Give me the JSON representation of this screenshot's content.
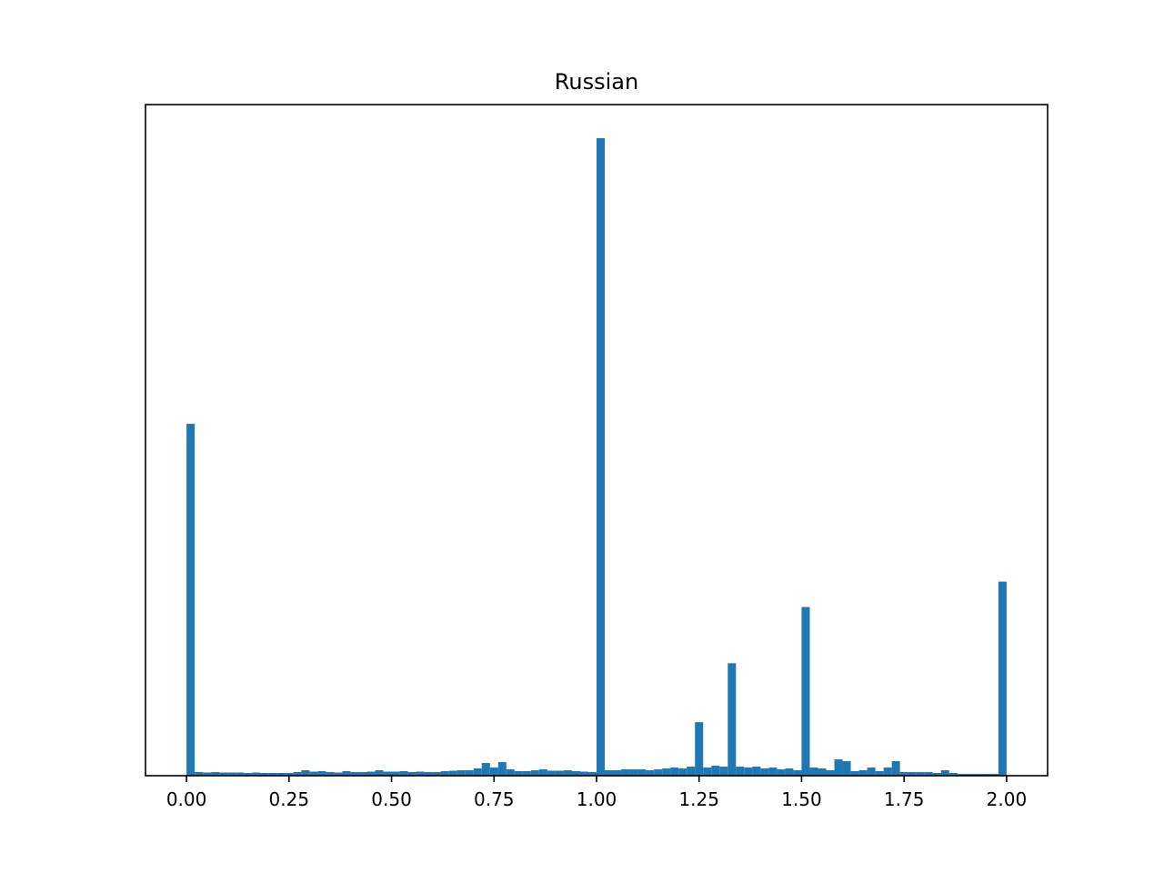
{
  "chart_data": {
    "type": "histogram",
    "title": "Russian",
    "color": "#1f77b4",
    "bins": [
      0,
      0.02,
      0.04,
      0.06,
      0.08,
      0.1,
      0.12,
      0.14,
      0.16,
      0.18,
      0.2,
      0.22,
      0.24,
      0.26,
      0.28,
      0.3,
      0.32,
      0.34,
      0.36,
      0.38,
      0.4,
      0.42,
      0.44,
      0.46,
      0.48,
      0.5,
      0.52,
      0.54,
      0.56,
      0.58,
      0.6,
      0.62,
      0.64,
      0.66,
      0.68,
      0.7,
      0.72,
      0.74,
      0.76,
      0.78,
      0.8,
      0.82,
      0.84,
      0.86,
      0.88,
      0.9,
      0.92,
      0.94,
      0.96,
      0.98,
      1,
      1.02,
      1.04,
      1.06,
      1.08,
      1.1,
      1.12,
      1.14,
      1.16,
      1.18,
      1.2,
      1.22,
      1.24,
      1.26,
      1.28,
      1.3,
      1.32,
      1.34,
      1.36,
      1.38,
      1.4,
      1.42,
      1.44,
      1.46,
      1.48,
      1.5,
      1.52,
      1.54,
      1.56,
      1.58,
      1.6,
      1.62,
      1.64,
      1.66,
      1.68,
      1.7,
      1.72,
      1.74,
      1.76,
      1.78,
      1.8,
      1.82,
      1.84,
      1.86,
      1.88,
      1.9,
      1.92,
      1.94,
      1.96,
      1.98,
      2
    ],
    "values": [
      3880,
      40,
      35,
      40,
      35,
      35,
      35,
      30,
      35,
      30,
      30,
      30,
      30,
      40,
      60,
      45,
      50,
      40,
      35,
      50,
      40,
      40,
      45,
      60,
      45,
      45,
      50,
      40,
      45,
      40,
      40,
      50,
      55,
      60,
      60,
      80,
      140,
      90,
      150,
      70,
      50,
      50,
      60,
      70,
      55,
      55,
      60,
      50,
      45,
      40,
      7030,
      60,
      60,
      70,
      70,
      70,
      60,
      70,
      80,
      90,
      80,
      100,
      590,
      90,
      110,
      100,
      1240,
      100,
      90,
      100,
      80,
      90,
      70,
      80,
      60,
      1860,
      90,
      80,
      60,
      180,
      160,
      50,
      60,
      90,
      50,
      90,
      160,
      40,
      40,
      40,
      40,
      30,
      60,
      30,
      20,
      20,
      20,
      20,
      20,
      2140
    ],
    "xlim": [
      -0.1,
      2.1
    ],
    "ylim": [
      0,
      7400
    ],
    "xticks": [
      {
        "value": 0,
        "label": "0.00"
      },
      {
        "value": 0.25,
        "label": "0.25"
      },
      {
        "value": 0.5,
        "label": "0.50"
      },
      {
        "value": 0.75,
        "label": "0.75"
      },
      {
        "value": 1,
        "label": "1.00"
      },
      {
        "value": 1.25,
        "label": "1.25"
      },
      {
        "value": 1.5,
        "label": "1.50"
      },
      {
        "value": 1.75,
        "label": "1.75"
      },
      {
        "value": 2,
        "label": "2.00"
      }
    ]
  }
}
